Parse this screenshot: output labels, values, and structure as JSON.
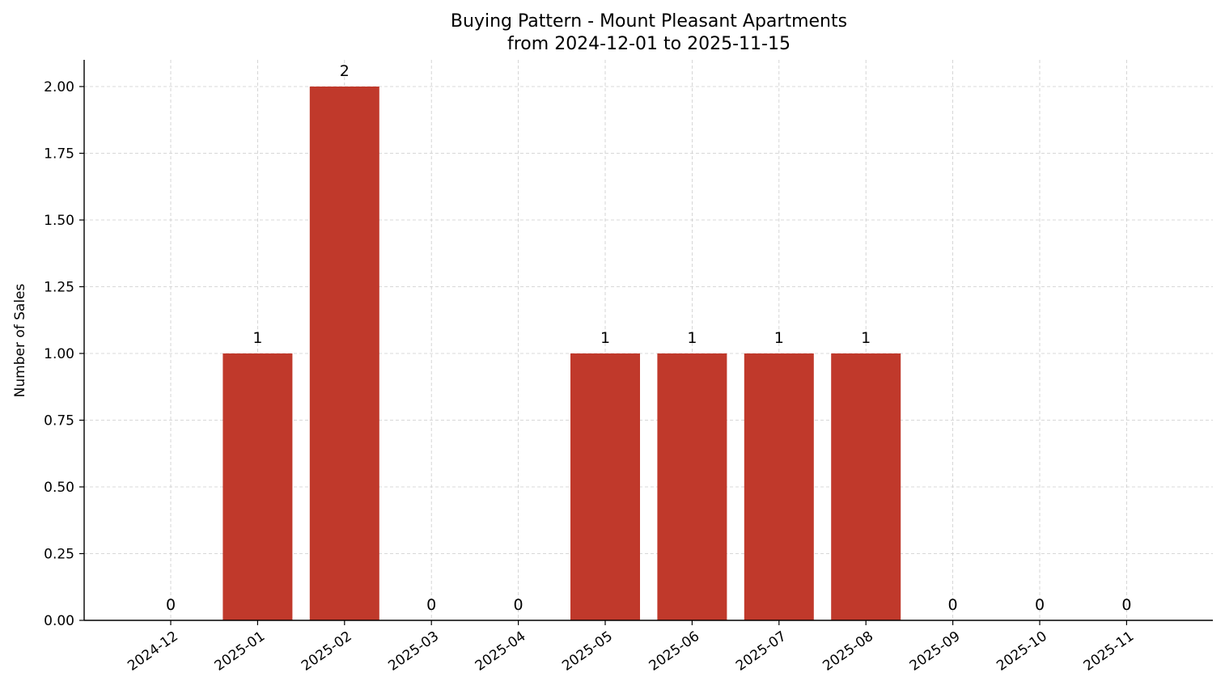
{
  "chart_data": {
    "type": "bar",
    "title": "Buying Pattern - Mount Pleasant Apartments",
    "subtitle": "from 2024-12-01 to 2025-11-15",
    "xlabel": "",
    "ylabel": "Number of Sales",
    "categories": [
      "2024-12",
      "2025-01",
      "2025-02",
      "2025-03",
      "2025-04",
      "2025-05",
      "2025-06",
      "2025-07",
      "2025-08",
      "2025-09",
      "2025-10",
      "2025-11"
    ],
    "values": [
      0,
      1,
      2,
      0,
      0,
      1,
      1,
      1,
      1,
      0,
      0,
      0
    ],
    "ylim": [
      0,
      2.1
    ],
    "yticks": [
      "0.00",
      "0.25",
      "0.50",
      "0.75",
      "1.00",
      "1.25",
      "1.50",
      "1.75",
      "2.00"
    ],
    "grid": true,
    "bar_color": "#c0392b"
  }
}
